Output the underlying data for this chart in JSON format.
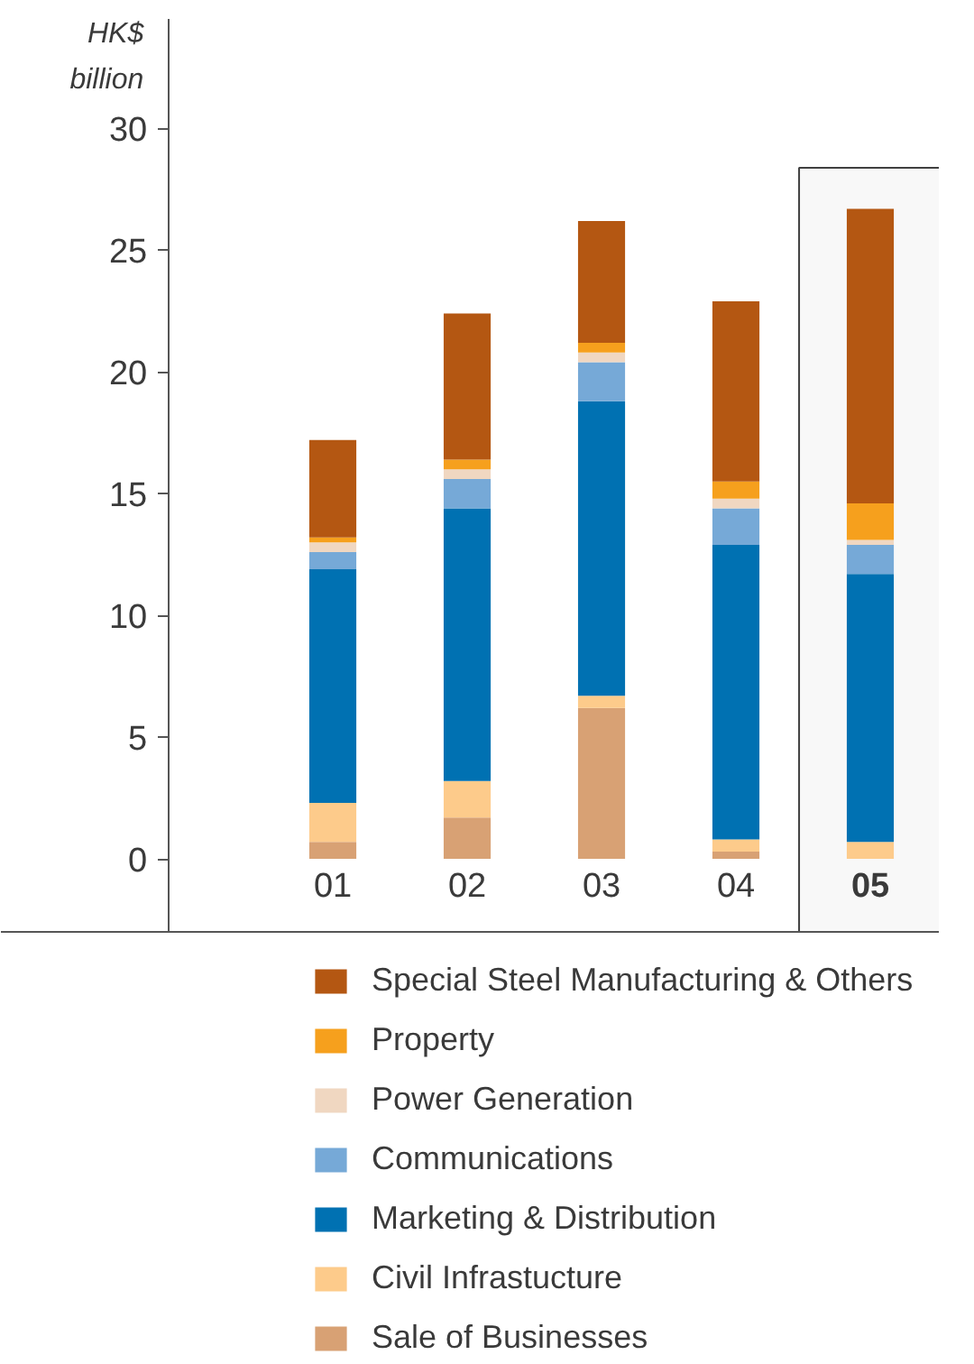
{
  "chart_data": {
    "type": "bar",
    "stacked": true,
    "ylabel": "HK$ billion",
    "categories": [
      "01",
      "02",
      "03",
      "04",
      "05"
    ],
    "series": [
      {
        "name": "Sale of Businesses",
        "color": "#d8a174",
        "values": [
          0.7,
          1.7,
          6.2,
          0.3,
          null
        ]
      },
      {
        "name": "Civil Infrastucture",
        "color": "#fdcb8b",
        "values": [
          1.6,
          1.5,
          0.5,
          0.5,
          0.7
        ]
      },
      {
        "name": "Marketing & Distribution",
        "color": "#0071b2",
        "values": [
          9.6,
          11.2,
          12.1,
          12.1,
          11.0
        ]
      },
      {
        "name": "Communications",
        "color": "#76a9d7",
        "values": [
          0.7,
          1.2,
          1.6,
          1.5,
          1.2
        ]
      },
      {
        "name": "Power Generation",
        "color": "#f0d7c1",
        "values": [
          0.4,
          0.4,
          0.4,
          0.4,
          0.2
        ]
      },
      {
        "name": "Property",
        "color": "#f6a01d",
        "values": [
          0.2,
          0.4,
          0.4,
          0.7,
          1.5
        ]
      },
      {
        "name": "Special Steel Manufacturing & Others",
        "color": "#b45712",
        "values": [
          4.0,
          6.0,
          5.0,
          7.4,
          12.1
        ]
      }
    ],
    "ylim": [
      -3,
      34.5
    ],
    "yticks": [
      0,
      5,
      10,
      15,
      20,
      25,
      30
    ],
    "legend": "bottom",
    "bands": [
      {
        "axis": "x",
        "from": "05",
        "to": "05",
        "color": "#404040"
      }
    ]
  }
}
